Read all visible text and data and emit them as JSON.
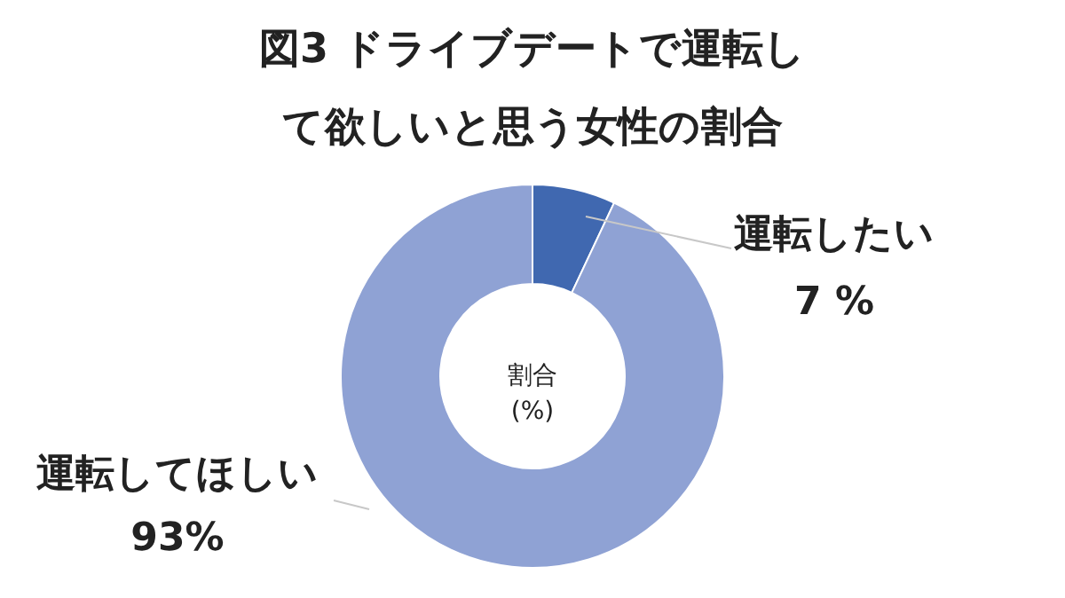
{
  "chart_data": {
    "type": "donut",
    "title": "図3 ドライブデートで運転して欲しいと思う女性の割合",
    "categories": [
      "運転したい",
      "運転してほしい"
    ],
    "values": [
      7,
      93
    ],
    "value_labels": [
      "7 %",
      "93%"
    ],
    "colors": [
      "#4068b0",
      "#8fa2d4"
    ],
    "annotations": [
      "割合\n(%)"
    ],
    "legend": false
  }
}
